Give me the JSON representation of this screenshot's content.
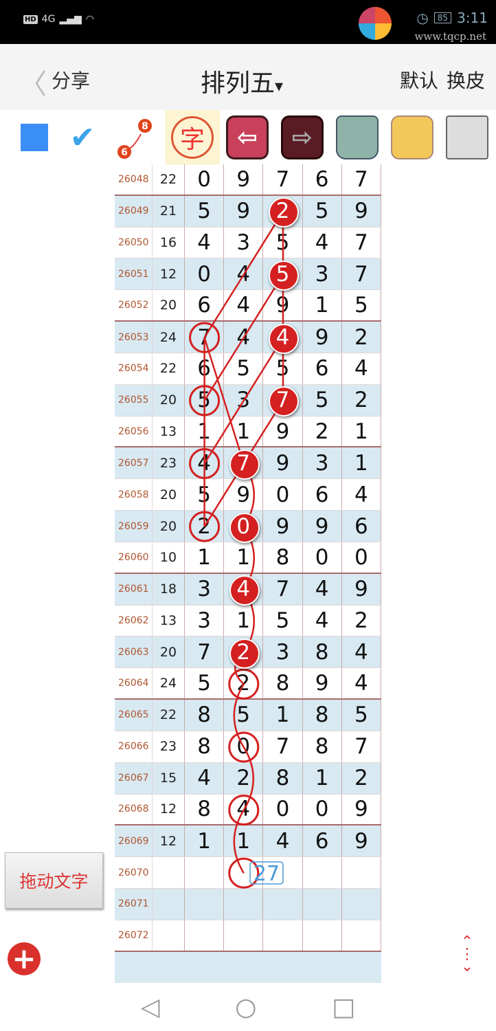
{
  "status_bar": {
    "signal": "4G",
    "battery": "85",
    "time": "3:11",
    "watermark": "www.tqcp.net"
  },
  "nav": {
    "back_icon": "chevron-left-icon",
    "share": "分享",
    "title": "排列五",
    "title_arrow": "▾",
    "default": "默认",
    "skin": "换皮"
  },
  "toolbar": {
    "items": [
      "color-square",
      "pen-check",
      "line-connect",
      "字",
      "undo",
      "redo",
      "trash",
      "image-folder",
      "save-disk"
    ],
    "zi_label": "字",
    "line_from": "6",
    "line_to": "8"
  },
  "table": {
    "rows": [
      [
        "26048",
        "22",
        "0",
        "9",
        "7",
        "6",
        "7"
      ],
      [
        "26049",
        "21",
        "5",
        "9",
        "2",
        "5",
        "9"
      ],
      [
        "26050",
        "16",
        "4",
        "3",
        "5",
        "4",
        "7"
      ],
      [
        "26051",
        "12",
        "0",
        "4",
        "5",
        "3",
        "7"
      ],
      [
        "26052",
        "20",
        "6",
        "4",
        "9",
        "1",
        "5"
      ],
      [
        "26053",
        "24",
        "7",
        "4",
        "4",
        "9",
        "2"
      ],
      [
        "26054",
        "22",
        "6",
        "5",
        "5",
        "6",
        "4"
      ],
      [
        "26055",
        "20",
        "5",
        "3",
        "7",
        "5",
        "2"
      ],
      [
        "26056",
        "13",
        "1",
        "1",
        "9",
        "2",
        "1"
      ],
      [
        "26057",
        "23",
        "4",
        "7",
        "9",
        "3",
        "1"
      ],
      [
        "26058",
        "20",
        "5",
        "9",
        "0",
        "6",
        "4"
      ],
      [
        "26059",
        "20",
        "2",
        "0",
        "9",
        "9",
        "6"
      ],
      [
        "26060",
        "10",
        "1",
        "1",
        "8",
        "0",
        "0"
      ],
      [
        "26061",
        "18",
        "3",
        "4",
        "7",
        "4",
        "9"
      ],
      [
        "26062",
        "13",
        "3",
        "1",
        "5",
        "4",
        "2"
      ],
      [
        "26063",
        "20",
        "7",
        "2",
        "3",
        "8",
        "4"
      ],
      [
        "26064",
        "24",
        "5",
        "2",
        "8",
        "9",
        "4"
      ],
      [
        "26065",
        "22",
        "8",
        "5",
        "1",
        "8",
        "5"
      ],
      [
        "26066",
        "23",
        "8",
        "0",
        "7",
        "8",
        "7"
      ],
      [
        "26067",
        "15",
        "4",
        "2",
        "8",
        "1",
        "2"
      ],
      [
        "26068",
        "12",
        "8",
        "4",
        "0",
        "0",
        "9"
      ],
      [
        "26069",
        "12",
        "1",
        "1",
        "4",
        "6",
        "9"
      ],
      [
        "26070",
        "",
        "",
        "",
        "",
        "",
        ""
      ],
      [
        "26071",
        "",
        "",
        "",
        "",
        "",
        ""
      ],
      [
        "26072",
        "",
        "",
        "",
        "",
        "",
        ""
      ]
    ],
    "filled_marks": [
      [
        1,
        3
      ],
      [
        3,
        3
      ],
      [
        5,
        3
      ],
      [
        7,
        3
      ],
      [
        9,
        2
      ],
      [
        11,
        2
      ],
      [
        13,
        2
      ],
      [
        15,
        2
      ]
    ],
    "outline_marks": [
      [
        5,
        1
      ],
      [
        7,
        1
      ],
      [
        9,
        1
      ],
      [
        11,
        1
      ],
      [
        16,
        2
      ],
      [
        18,
        2
      ],
      [
        20,
        2
      ],
      [
        22,
        2
      ]
    ],
    "annotation": "27",
    "accent": "#d42020"
  },
  "drag_button": "拖动文字",
  "add_icon": "plus-circle-icon",
  "scroll_icon": "up-down-arrows-icon",
  "system_nav": {
    "back": "◁",
    "home": "○",
    "recent": "□"
  }
}
